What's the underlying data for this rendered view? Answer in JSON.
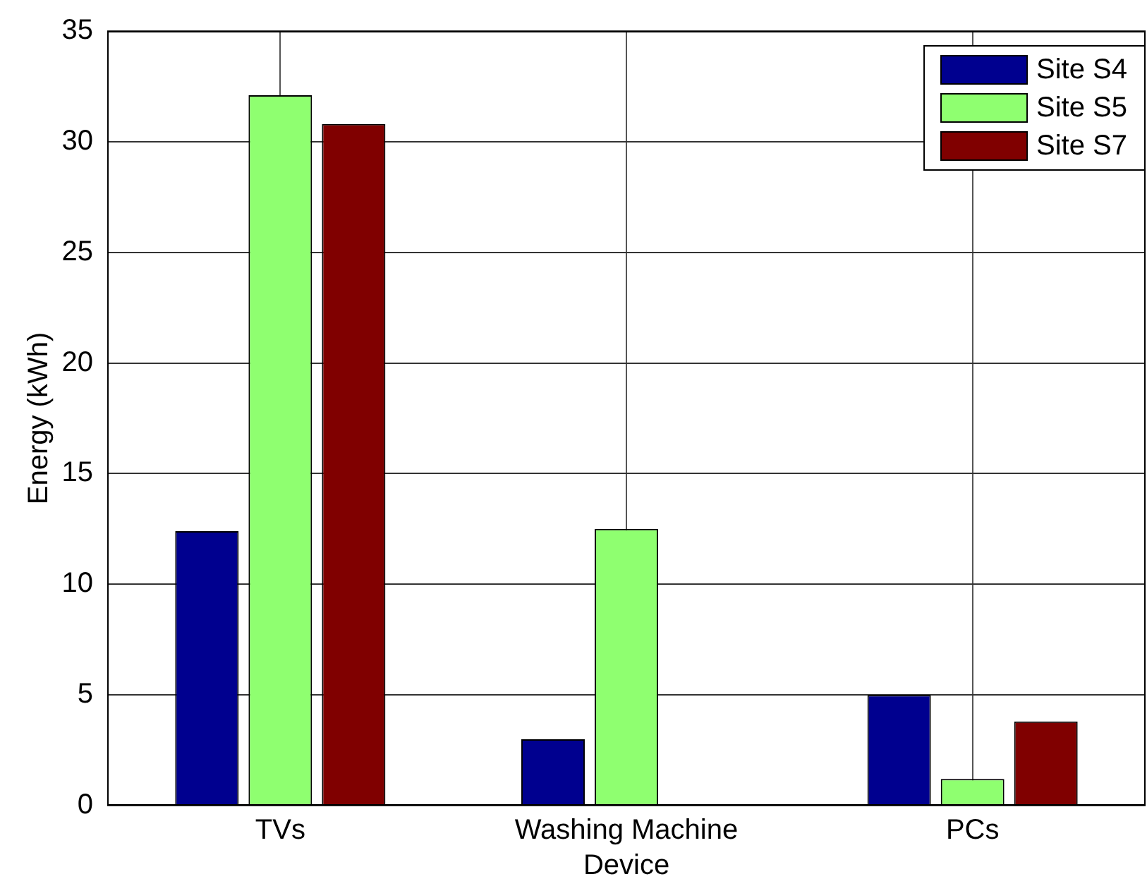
{
  "chart_data": {
    "type": "bar",
    "xlabel": "Device",
    "ylabel": "Energy (kWh)",
    "categories": [
      "TVs",
      "Washing Machine",
      "PCs"
    ],
    "series": [
      {
        "name": "Site S4",
        "color": "#00008f",
        "values": [
          12.4,
          3,
          5
        ]
      },
      {
        "name": "Site S5",
        "color": "#8fff70",
        "values": [
          32.1,
          12.5,
          1.2
        ]
      },
      {
        "name": "Site S7",
        "color": "#800000",
        "values": [
          30.8,
          null,
          3.8
        ]
      }
    ],
    "ylim": [
      0,
      35
    ],
    "yticks": [
      0,
      5,
      10,
      15,
      20,
      25,
      30,
      35
    ],
    "grid": true,
    "legend": "top right"
  }
}
